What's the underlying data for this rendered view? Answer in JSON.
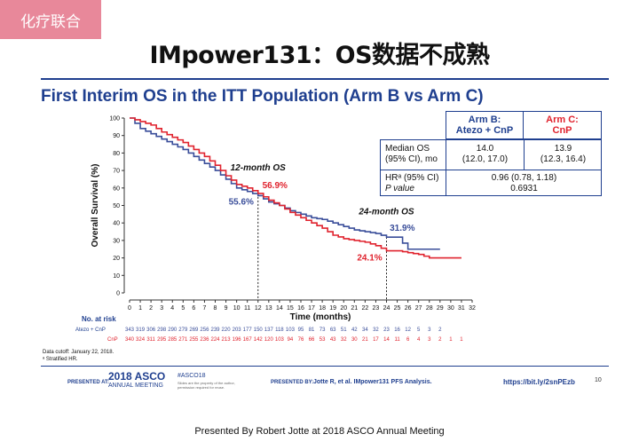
{
  "tag": "化疗联合",
  "headline": "IMpower131：OS数据不成熟",
  "slide_title": "First Interim OS in the ITT Population (Arm B vs Arm C)",
  "colors": {
    "arm_b": "#3a4e9a",
    "arm_c": "#e0232e",
    "title_blue": "#1f3f8f",
    "tag_bg": "#e8889a"
  },
  "table": {
    "arm_b_header": [
      "Arm B:",
      "Atezo + CnP"
    ],
    "arm_c_header": [
      "Arm C:",
      "CnP"
    ],
    "row1_label": [
      "Median OS",
      "(95% CI), mo"
    ],
    "row1_b": [
      "14.0",
      "(12.0, 17.0)"
    ],
    "row1_c": [
      "13.9",
      "(12.3, 16.4)"
    ],
    "row2_label": [
      "HRᵃ (95% CI)",
      "P value"
    ],
    "row2_value": [
      "0.96 (0.78, 1.18)",
      "0.6931"
    ]
  },
  "risk": {
    "heading": "No. at risk",
    "arm_b_label": "Atezo + CnP",
    "arm_c_label": "CnP",
    "arm_b_values": [
      "343",
      "319",
      "306",
      "298",
      "290",
      "279",
      "269",
      "256",
      "239",
      "220",
      "203",
      "177",
      "150",
      "137",
      "118",
      "103",
      "95",
      "81",
      "73",
      "63",
      "51",
      "42",
      "34",
      "32",
      "23",
      "16",
      "12",
      "5",
      "3",
      "2"
    ],
    "arm_c_values": [
      "340",
      "324",
      "311",
      "295",
      "285",
      "271",
      "255",
      "236",
      "224",
      "213",
      "196",
      "167",
      "142",
      "120",
      "103",
      "94",
      "76",
      "66",
      "53",
      "43",
      "32",
      "30",
      "21",
      "17",
      "14",
      "11",
      "6",
      "4",
      "3",
      "2",
      "1",
      "1"
    ]
  },
  "footnotes": [
    "Data cutoff: January 22, 2018.",
    "ᵃ Stratified HR."
  ],
  "footer": {
    "presented_at": "PRESENTED AT:",
    "meeting": "2018 ASCO",
    "meeting_sub": "ANNUAL MEETING",
    "hashtag": "#ASCO18",
    "hashtag_sub": "Slides are the property of the author, permission required for reuse.",
    "presented_by": "PRESENTED BY:",
    "author": "Jotte R, et al. IMpower131 PFS Analysis.",
    "link": "https://bit.ly/2snPEzb",
    "page": "10"
  },
  "presented": "Presented By Robert Jotte at 2018 ASCO Annual Meeting",
  "chart_data": {
    "type": "line",
    "title": "",
    "xlabel": "Time (months)",
    "ylabel": "Overall Survival (%)",
    "xlim": [
      0,
      32
    ],
    "ylim": [
      0,
      100
    ],
    "xticks": [
      0,
      1,
      2,
      3,
      4,
      5,
      6,
      7,
      8,
      9,
      10,
      11,
      12,
      13,
      14,
      15,
      16,
      17,
      18,
      19,
      20,
      21,
      22,
      23,
      24,
      25,
      26,
      27,
      28,
      29,
      30,
      31,
      32
    ],
    "yticks": [
      0,
      10,
      20,
      30,
      40,
      50,
      60,
      70,
      80,
      90,
      100
    ],
    "series": [
      {
        "name": "Atezo + CnP",
        "x": [
          0,
          1,
          2,
          3,
          4,
          5,
          6,
          7,
          8,
          9,
          10,
          11,
          12,
          13,
          14,
          15,
          16,
          17,
          18,
          19,
          20,
          21,
          22,
          23,
          24,
          25,
          26,
          27,
          28,
          29
        ],
        "y": [
          100,
          94,
          91,
          88,
          85,
          82,
          78,
          74,
          70,
          65,
          60,
          58,
          55.6,
          52,
          50,
          47,
          45,
          43,
          42,
          40,
          38,
          36,
          35,
          34,
          31.9,
          31.9,
          25,
          25,
          25,
          25
        ]
      },
      {
        "name": "CnP",
        "x": [
          0,
          1,
          2,
          3,
          4,
          5,
          6,
          7,
          8,
          9,
          10,
          11,
          12,
          13,
          14,
          15,
          16,
          17,
          18,
          19,
          20,
          21,
          22,
          23,
          24,
          25,
          26,
          27,
          28,
          29,
          30,
          31
        ],
        "y": [
          100,
          98,
          96,
          92,
          89,
          86,
          82,
          78,
          73,
          67,
          62,
          60,
          56.9,
          53,
          50,
          46,
          43,
          40,
          37,
          33,
          31,
          30,
          29,
          27,
          24.1,
          24.1,
          23,
          22,
          20,
          20,
          20,
          20
        ]
      }
    ],
    "annotations": [
      "12-month OS",
      "24-month OS",
      "56.9%",
      "55.6%",
      "31.9%",
      "24.1%"
    ],
    "landmarks_x": [
      12,
      24
    ]
  }
}
